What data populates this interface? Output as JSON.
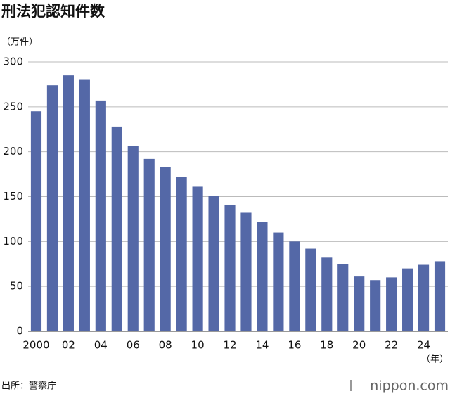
{
  "chart_data": {
    "type": "bar",
    "title": "刑法犯認知件数",
    "y_label": "（万件）",
    "x_label": "（年）",
    "source": "出所：警察庁",
    "brand": "nippon.com",
    "categories": [
      "2000",
      null,
      "02",
      null,
      "04",
      null,
      "06",
      null,
      "08",
      null,
      "10",
      null,
      "12",
      null,
      "14",
      null,
      "16",
      null,
      "18",
      null,
      "20",
      null,
      "22",
      null,
      "24",
      null
    ],
    "values": [
      245,
      274,
      285,
      280,
      257,
      228,
      206,
      192,
      183,
      172,
      161,
      151,
      141,
      132,
      122,
      110,
      100,
      92,
      82,
      75,
      61,
      57,
      60,
      70,
      74,
      78
    ],
    "color": "#5468a7",
    "ylim": [
      0,
      300
    ],
    "yticks": [
      0,
      50,
      100,
      150,
      200,
      250,
      300
    ],
    "grid": true
  }
}
